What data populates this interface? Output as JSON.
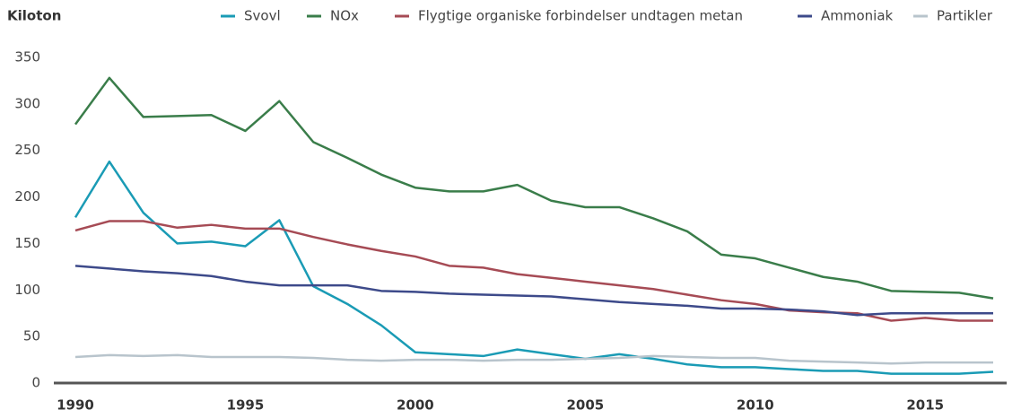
{
  "chart_data": {
    "type": "line",
    "y_label": "Kiloton",
    "x": [
      1990,
      1991,
      1992,
      1993,
      1994,
      1995,
      1996,
      1997,
      1998,
      1999,
      2000,
      2001,
      2002,
      2003,
      2004,
      2005,
      2006,
      2007,
      2008,
      2009,
      2010,
      2011,
      2012,
      2013,
      2014,
      2015,
      2016,
      2017
    ],
    "series": [
      {
        "name": "Svovl",
        "color": "#1a9bb5",
        "values": [
          178,
          238,
          183,
          150,
          152,
          147,
          175,
          104,
          85,
          62,
          33,
          31,
          29,
          36,
          31,
          26,
          31,
          26,
          20,
          17,
          17,
          15,
          13,
          13,
          10,
          10,
          10,
          12
        ]
      },
      {
        "name": "NOx",
        "color": "#3a7d4a",
        "values": [
          278,
          328,
          286,
          287,
          288,
          271,
          303,
          259,
          242,
          224,
          210,
          206,
          206,
          213,
          196,
          189,
          189,
          177,
          163,
          138,
          134,
          124,
          114,
          109,
          99,
          98,
          97,
          91
        ]
      },
      {
        "name": "Flygtige organiske forbindelser undtagen metan",
        "color": "#a64b55",
        "values": [
          164,
          174,
          174,
          167,
          170,
          166,
          166,
          157,
          149,
          142,
          136,
          126,
          124,
          117,
          113,
          109,
          105,
          101,
          95,
          89,
          85,
          78,
          76,
          75,
          67,
          70,
          67,
          67
        ]
      },
      {
        "name": "Ammoniak",
        "color": "#3d4a8a",
        "values": [
          126,
          123,
          120,
          118,
          115,
          109,
          105,
          105,
          105,
          99,
          98,
          96,
          95,
          94,
          93,
          90,
          87,
          85,
          83,
          80,
          80,
          79,
          77,
          73,
          75,
          75,
          75,
          75
        ]
      },
      {
        "name": "Partikler",
        "color": "#b8c4cc",
        "values": [
          28,
          30,
          29,
          30,
          28,
          28,
          28,
          27,
          25,
          24,
          25,
          25,
          24,
          25,
          25,
          26,
          27,
          29,
          28,
          27,
          27,
          24,
          23,
          22,
          21,
          22,
          22,
          22
        ]
      }
    ],
    "xlim": [
      1990,
      2017
    ],
    "xticks": [
      1990,
      1995,
      2000,
      2005,
      2010,
      2015
    ],
    "ylim": [
      0,
      350
    ],
    "yticks": [
      0,
      50,
      100,
      150,
      200,
      250,
      300,
      350
    ]
  }
}
